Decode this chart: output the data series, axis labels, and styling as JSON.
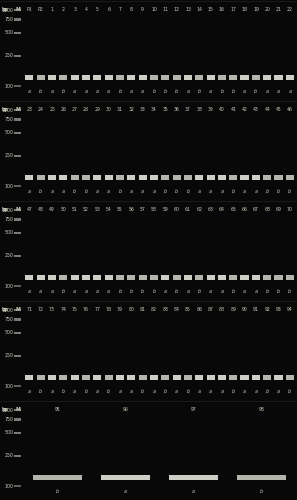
{
  "background_color": "#080808",
  "gel_bg": "#0e0e0e",
  "figsize": [
    2.97,
    5.0
  ],
  "panels": [
    {
      "sample_labels": [
        "P1",
        "P2",
        "1",
        "2",
        "3",
        "4",
        "5",
        "6",
        "7",
        "8",
        "9",
        "10",
        "11",
        "12",
        "13",
        "14",
        "15",
        "16",
        "17",
        "18",
        "19",
        "20",
        "21",
        "22"
      ],
      "band_labels": [
        "a",
        "b",
        "a",
        "b",
        "a",
        "a",
        "a",
        "a",
        "b",
        "a",
        "a",
        "b",
        "b",
        "b",
        "a",
        "b",
        "a",
        "b",
        "b",
        "a",
        "b",
        "a",
        "a",
        "a"
      ],
      "bp_label": "bp",
      "m_label": "M"
    },
    {
      "sample_labels": [
        "23",
        "24",
        "25",
        "26",
        "27",
        "28",
        "29",
        "30",
        "31",
        "32",
        "33",
        "34",
        "35",
        "36",
        "37",
        "38",
        "39",
        "40",
        "41",
        "42",
        "43",
        "44",
        "45",
        "46"
      ],
      "band_labels": [
        "a",
        "b",
        "a",
        "a",
        "b",
        "b",
        "a",
        "a",
        "b",
        "a",
        "a",
        "a",
        "b",
        "b",
        "b",
        "a",
        "a",
        "a",
        "b",
        "a",
        "a",
        "b",
        "b",
        "b"
      ],
      "bp_label": "bp",
      "m_label": "M"
    },
    {
      "sample_labels": [
        "47",
        "48",
        "49",
        "50",
        "51",
        "52",
        "53",
        "54",
        "55",
        "56",
        "57",
        "58",
        "59",
        "60",
        "61",
        "62",
        "63",
        "64",
        "65",
        "66",
        "67",
        "68",
        "69",
        "70"
      ],
      "band_labels": [
        "a",
        "a",
        "a",
        "b",
        "a",
        "a",
        "a",
        "a",
        "b",
        "b",
        "b",
        "b",
        "a",
        "b",
        "a",
        "b",
        "a",
        "a",
        "b",
        "a",
        "a",
        "b",
        "b",
        "b"
      ],
      "bp_label": "bp",
      "m_label": "M"
    },
    {
      "sample_labels": [
        "71",
        "72",
        "73",
        "74",
        "75",
        "76",
        "77",
        "78",
        "79",
        "80",
        "81",
        "82",
        "83",
        "84",
        "85",
        "86",
        "87",
        "88",
        "89",
        "90",
        "91",
        "92",
        "93",
        "94"
      ],
      "band_labels": [
        "a",
        "b",
        "a",
        "b",
        "a",
        "b",
        "a",
        "b",
        "a",
        "a",
        "b",
        "a",
        "b",
        "a",
        "b",
        "a",
        "a",
        "a",
        "b",
        "a",
        "a",
        "b",
        "a",
        "b"
      ],
      "bp_label": "bp",
      "m_label": "M"
    },
    {
      "sample_labels": [
        "95",
        "96",
        "97",
        "98"
      ],
      "band_labels": [
        "b",
        "a",
        "a",
        "b"
      ],
      "bp_label": "bp",
      "m_label": "M"
    }
  ],
  "band_color": "#e0e0d8",
  "marker_color": "#aaaaaa",
  "text_color": "#ccccbb",
  "label_fontsize": 3.5,
  "marker_fontsize": 3.4,
  "num_label_fontsize": 3.3
}
